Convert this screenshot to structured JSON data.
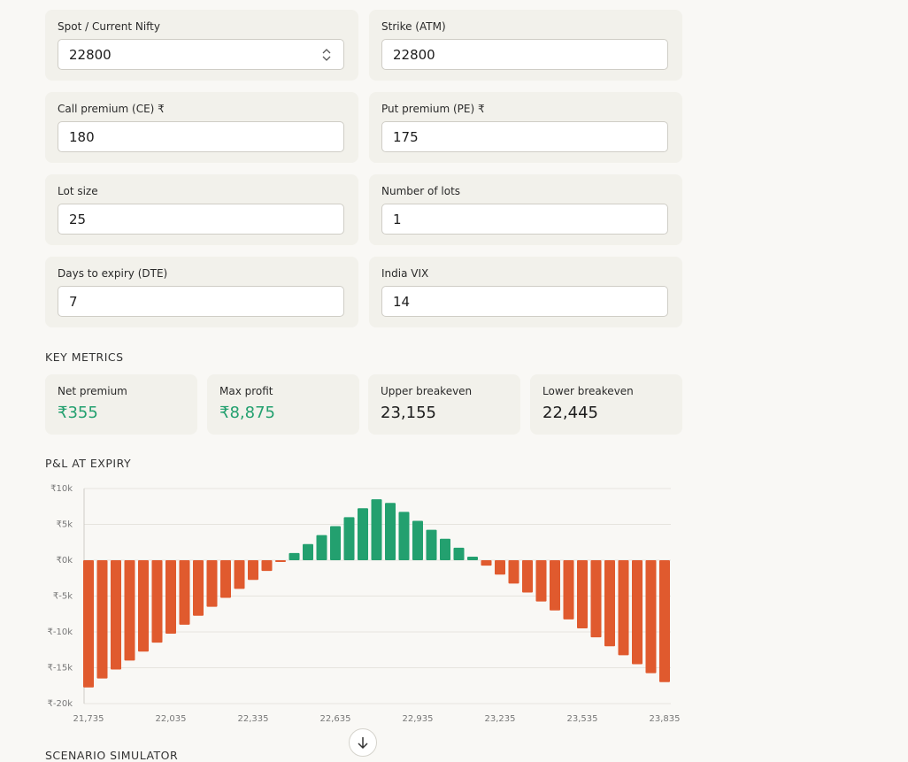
{
  "form": {
    "fields": [
      {
        "label": "Spot / Current Nifty",
        "value": "22800"
      },
      {
        "label": "Strike (ATM)",
        "value": "22800"
      },
      {
        "label": "Call premium (CE) ₹",
        "value": "180"
      },
      {
        "label": "Put premium (PE) ₹",
        "value": "175"
      },
      {
        "label": "Lot size",
        "value": "25"
      },
      {
        "label": "Number of lots",
        "value": "1"
      },
      {
        "label": "Days to expiry (DTE)",
        "value": "7"
      },
      {
        "label": "India VIX",
        "value": "14"
      }
    ]
  },
  "key_metrics": {
    "title": "KEY METRICS",
    "items": [
      {
        "label": "Net premium",
        "value": "₹355"
      },
      {
        "label": "Max profit",
        "value": "₹8,875"
      },
      {
        "label": "Upper breakeven",
        "value": "23,155"
      },
      {
        "label": "Lower breakeven",
        "value": "22,445"
      }
    ]
  },
  "chart_data": {
    "type": "bar",
    "title": "P&L AT EXPIRY",
    "x": [
      21735,
      21785,
      21835,
      21885,
      21935,
      21985,
      22035,
      22085,
      22135,
      22185,
      22235,
      22285,
      22335,
      22385,
      22435,
      22485,
      22535,
      22585,
      22635,
      22685,
      22735,
      22785,
      22835,
      22885,
      22935,
      22985,
      23035,
      23085,
      23135,
      23185,
      23235,
      23285,
      23335,
      23385,
      23435,
      23485,
      23535,
      23585,
      23635,
      23685,
      23735,
      23785,
      23835
    ],
    "values": [
      -17750,
      -16500,
      -15250,
      -14000,
      -12750,
      -11500,
      -10250,
      -9000,
      -7750,
      -6500,
      -5250,
      -4000,
      -2750,
      -1500,
      -250,
      1000,
      2250,
      3500,
      4750,
      6000,
      7250,
      8500,
      8000,
      6750,
      5500,
      4250,
      3000,
      1750,
      500,
      -750,
      -2000,
      -3250,
      -4500,
      -5750,
      -7000,
      -8250,
      -9500,
      -10750,
      -12000,
      -13250,
      -14500,
      -15750,
      -17000
    ],
    "xlim": [
      21735,
      23835
    ],
    "xticks": [
      {
        "value": 21735,
        "label": "21,735"
      },
      {
        "value": 22035,
        "label": "22,035"
      },
      {
        "value": 22335,
        "label": "22,335"
      },
      {
        "value": 22635,
        "label": "22,635"
      },
      {
        "value": 22935,
        "label": "22,935"
      },
      {
        "value": 23235,
        "label": "23,235"
      },
      {
        "value": 23535,
        "label": "23,535"
      },
      {
        "value": 23835,
        "label": "23,835"
      }
    ],
    "ylim": [
      -20000,
      10000
    ],
    "yticks": [
      {
        "value": 10000,
        "label": "₹10k"
      },
      {
        "value": 5000,
        "label": "₹5k"
      },
      {
        "value": 0,
        "label": "₹0k"
      },
      {
        "value": -5000,
        "label": "₹-5k"
      },
      {
        "value": -10000,
        "label": "₹-10k"
      },
      {
        "value": -15000,
        "label": "₹-15k"
      },
      {
        "value": -20000,
        "label": "₹-20k"
      }
    ],
    "positive_color": "#23a06f",
    "negative_color": "#e05a2e",
    "grid": true
  },
  "next_section": {
    "title": "SCENARIO SIMULATOR"
  }
}
